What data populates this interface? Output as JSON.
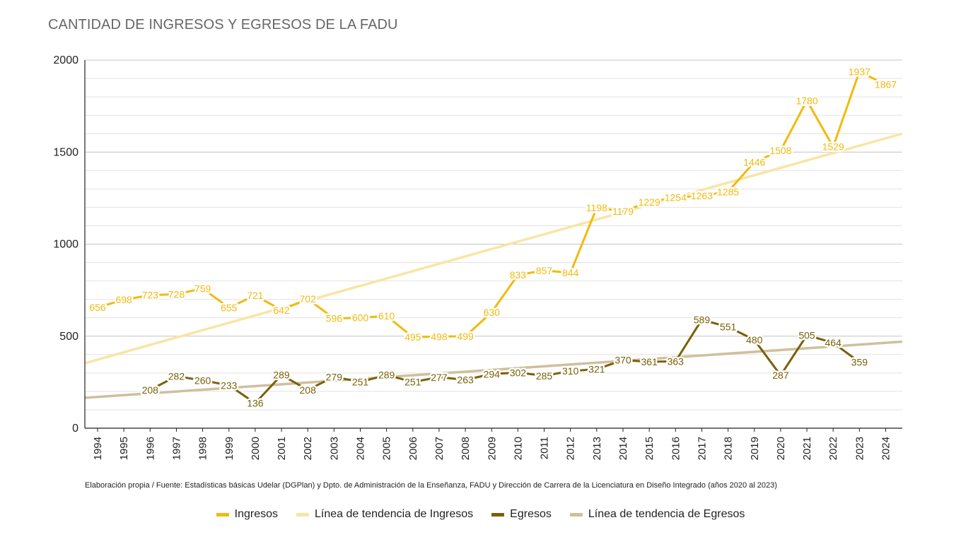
{
  "chart_data": {
    "type": "line",
    "title": "CANTIDAD DE INGRESOS Y EGRESOS DE LA FADU",
    "categories": [
      "1994",
      "1995",
      "1996",
      "1997",
      "1998",
      "1999",
      "2000",
      "2001",
      "2002",
      "2003",
      "2004",
      "2005",
      "2006",
      "2007",
      "2008",
      "2009",
      "2010",
      "2011",
      "2012",
      "2013",
      "2014",
      "2015",
      "2016",
      "2017",
      "2018",
      "2019",
      "2020",
      "2021",
      "2022",
      "2023",
      "2024"
    ],
    "ylim": [
      0,
      2000
    ],
    "yticks": [
      0,
      500,
      1000,
      1500,
      2000
    ],
    "grid": true,
    "legend_position": "bottom",
    "series": [
      {
        "name": "Ingresos",
        "color": "#F2BA0E",
        "values": [
          656,
          698,
          723,
          728,
          759,
          655,
          721,
          642,
          702,
          596,
          600,
          610,
          495,
          498,
          499,
          630,
          833,
          857,
          844,
          1198,
          1179,
          1229,
          1254,
          1263,
          1285,
          1446,
          1508,
          1780,
          1529,
          1937,
          1867
        ]
      },
      {
        "name": "Línea de tendencia de Ingresos",
        "color": "#F9E5A3",
        "type": "trendline",
        "values_at_edges": [
          353,
          1600
        ]
      },
      {
        "name": "Egresos",
        "color": "#7A6008",
        "values": [
          null,
          null,
          208,
          282,
          260,
          233,
          136,
          289,
          208,
          279,
          251,
          289,
          251,
          277,
          263,
          294,
          302,
          285,
          310,
          321,
          370,
          361,
          363,
          589,
          551,
          480,
          287,
          505,
          464,
          359,
          null
        ]
      },
      {
        "name": "Línea de tendencia de Egresos",
        "color": "#CFC09C",
        "type": "trendline",
        "values_at_edges": [
          165,
          470
        ]
      }
    ]
  },
  "source_note": "Elaboración propia / Fuente: Estadísticas básicas Udelar (DGPlan) y Dpto. de Administración de la Enseñanza, FADU y Dirección de Carrera de la Licenciatura en Diseño Integrado (años 2020 al 2023)",
  "legend": [
    {
      "label": "Ingresos",
      "color": "#F2BA0E"
    },
    {
      "label": "Línea de tendencia de Ingresos",
      "color": "#F9E5A3"
    },
    {
      "label": "Egresos",
      "color": "#7A6008"
    },
    {
      "label": "Línea de tendencia de Egresos",
      "color": "#CFC09C"
    }
  ]
}
